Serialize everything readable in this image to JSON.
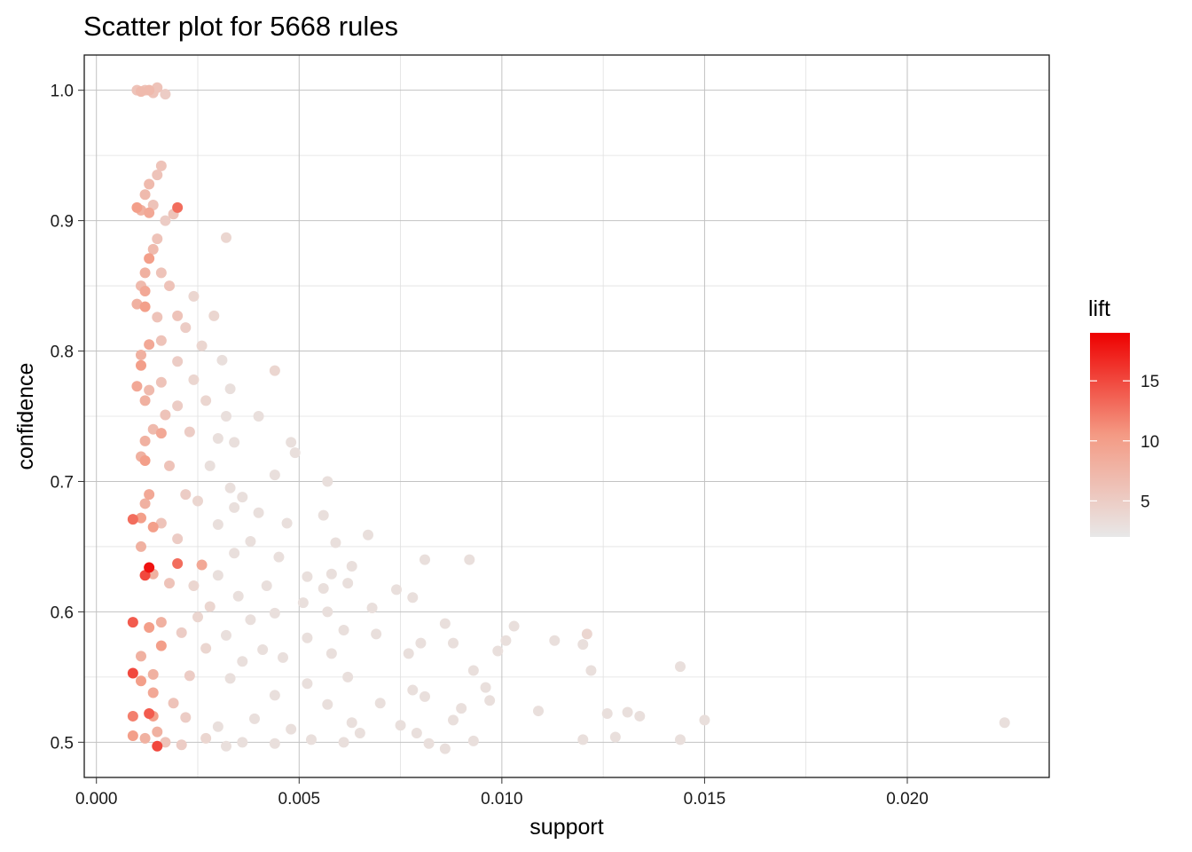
{
  "chart_data": {
    "type": "scatter",
    "title": "Scatter plot for 5668 rules",
    "xlabel": "support",
    "ylabel": "confidence",
    "xlim": [
      -0.0003,
      0.0235
    ],
    "ylim": [
      0.473,
      1.027
    ],
    "x_ticks": [
      0.0,
      0.005,
      0.01,
      0.015,
      0.02
    ],
    "x_tick_labels": [
      "0.000",
      "0.005",
      "0.010",
      "0.015",
      "0.020"
    ],
    "y_ticks": [
      0.5,
      0.6,
      0.7,
      0.8,
      0.9,
      1.0
    ],
    "y_tick_labels": [
      "0.5",
      "0.6",
      "0.7",
      "0.8",
      "0.9",
      "1.0"
    ],
    "grid": true,
    "legend": {
      "title": "lift",
      "placement": "right",
      "range": [
        2,
        19
      ],
      "ticks": [
        5,
        10,
        15
      ],
      "tick_labels": [
        "5",
        "10",
        "15"
      ],
      "color_low": "#e8e8e8",
      "color_high": "#ee0000"
    },
    "points": [
      [
        0.001,
        1.0,
        6
      ],
      [
        0.0012,
        1.0,
        6
      ],
      [
        0.0013,
        1.0,
        7
      ],
      [
        0.0015,
        1.002,
        6
      ],
      [
        0.0017,
        0.997,
        5
      ],
      [
        0.0011,
        0.999,
        7
      ],
      [
        0.0014,
        0.998,
        6
      ],
      [
        0.0016,
        0.942,
        6
      ],
      [
        0.0015,
        0.935,
        6
      ],
      [
        0.0013,
        0.928,
        7
      ],
      [
        0.0012,
        0.92,
        7
      ],
      [
        0.0014,
        0.912,
        6
      ],
      [
        0.001,
        0.91,
        10
      ],
      [
        0.0011,
        0.908,
        8
      ],
      [
        0.0013,
        0.906,
        9
      ],
      [
        0.002,
        0.91,
        13
      ],
      [
        0.0019,
        0.905,
        6
      ],
      [
        0.0017,
        0.9,
        5
      ],
      [
        0.0032,
        0.887,
        4
      ],
      [
        0.0015,
        0.886,
        6
      ],
      [
        0.0014,
        0.878,
        7
      ],
      [
        0.0013,
        0.871,
        10
      ],
      [
        0.0012,
        0.86,
        8
      ],
      [
        0.0016,
        0.86,
        6
      ],
      [
        0.0011,
        0.85,
        7
      ],
      [
        0.0012,
        0.846,
        9
      ],
      [
        0.0018,
        0.85,
        6
      ],
      [
        0.0024,
        0.842,
        4
      ],
      [
        0.001,
        0.836,
        8
      ],
      [
        0.0012,
        0.834,
        10
      ],
      [
        0.0015,
        0.826,
        6
      ],
      [
        0.002,
        0.827,
        6
      ],
      [
        0.0029,
        0.827,
        4
      ],
      [
        0.0022,
        0.818,
        5
      ],
      [
        0.0016,
        0.808,
        6
      ],
      [
        0.0013,
        0.805,
        9
      ],
      [
        0.0026,
        0.804,
        4
      ],
      [
        0.0011,
        0.797,
        8
      ],
      [
        0.002,
        0.792,
        5
      ],
      [
        0.0031,
        0.793,
        3
      ],
      [
        0.0011,
        0.789,
        10
      ],
      [
        0.0044,
        0.785,
        4
      ],
      [
        0.0024,
        0.778,
        4
      ],
      [
        0.0016,
        0.776,
        6
      ],
      [
        0.001,
        0.773,
        9
      ],
      [
        0.0013,
        0.77,
        7
      ],
      [
        0.0033,
        0.771,
        3
      ],
      [
        0.0012,
        0.762,
        8
      ],
      [
        0.0027,
        0.762,
        4
      ],
      [
        0.002,
        0.758,
        5
      ],
      [
        0.004,
        0.75,
        3
      ],
      [
        0.0017,
        0.751,
        6
      ],
      [
        0.0032,
        0.75,
        3
      ],
      [
        0.0014,
        0.74,
        7
      ],
      [
        0.0023,
        0.738,
        5
      ],
      [
        0.0016,
        0.737,
        9
      ],
      [
        0.0012,
        0.731,
        8
      ],
      [
        0.003,
        0.733,
        3
      ],
      [
        0.0034,
        0.73,
        3
      ],
      [
        0.0048,
        0.73,
        3
      ],
      [
        0.0049,
        0.722,
        3
      ],
      [
        0.0011,
        0.719,
        8
      ],
      [
        0.0012,
        0.716,
        10
      ],
      [
        0.0018,
        0.712,
        6
      ],
      [
        0.0028,
        0.712,
        3
      ],
      [
        0.0044,
        0.705,
        3
      ],
      [
        0.0057,
        0.7,
        3
      ],
      [
        0.0013,
        0.69,
        9
      ],
      [
        0.0022,
        0.69,
        5
      ],
      [
        0.0033,
        0.695,
        3
      ],
      [
        0.0036,
        0.688,
        3
      ],
      [
        0.0012,
        0.683,
        8
      ],
      [
        0.0025,
        0.685,
        4
      ],
      [
        0.0034,
        0.68,
        3
      ],
      [
        0.004,
        0.676,
        3
      ],
      [
        0.0056,
        0.674,
        3
      ],
      [
        0.0011,
        0.672,
        10
      ],
      [
        0.0009,
        0.671,
        13
      ],
      [
        0.0016,
        0.668,
        6
      ],
      [
        0.003,
        0.667,
        3
      ],
      [
        0.0047,
        0.668,
        3
      ],
      [
        0.0067,
        0.659,
        3
      ],
      [
        0.0014,
        0.665,
        10
      ],
      [
        0.002,
        0.656,
        5
      ],
      [
        0.0038,
        0.654,
        3
      ],
      [
        0.0059,
        0.653,
        3
      ],
      [
        0.0011,
        0.65,
        8
      ],
      [
        0.0034,
        0.645,
        3
      ],
      [
        0.0045,
        0.642,
        3
      ],
      [
        0.0063,
        0.635,
        3
      ],
      [
        0.0081,
        0.64,
        3
      ],
      [
        0.0092,
        0.64,
        3
      ],
      [
        0.0013,
        0.634,
        18
      ],
      [
        0.002,
        0.637,
        13
      ],
      [
        0.0026,
        0.636,
        9
      ],
      [
        0.0014,
        0.629,
        8
      ],
      [
        0.0012,
        0.628,
        15
      ],
      [
        0.003,
        0.628,
        3
      ],
      [
        0.0052,
        0.627,
        3
      ],
      [
        0.0058,
        0.629,
        3
      ],
      [
        0.0062,
        0.622,
        3
      ],
      [
        0.0018,
        0.622,
        6
      ],
      [
        0.0024,
        0.62,
        4
      ],
      [
        0.0042,
        0.62,
        3
      ],
      [
        0.0056,
        0.618,
        3
      ],
      [
        0.0074,
        0.617,
        3
      ],
      [
        0.0078,
        0.611,
        3
      ],
      [
        0.0035,
        0.612,
        3
      ],
      [
        0.0051,
        0.607,
        3
      ],
      [
        0.0028,
        0.604,
        4
      ],
      [
        0.0068,
        0.603,
        3
      ],
      [
        0.0057,
        0.6,
        3
      ],
      [
        0.0044,
        0.599,
        3
      ],
      [
        0.0009,
        0.592,
        14
      ],
      [
        0.0016,
        0.592,
        8
      ],
      [
        0.0025,
        0.596,
        4
      ],
      [
        0.0038,
        0.594,
        3
      ],
      [
        0.0086,
        0.591,
        3
      ],
      [
        0.0103,
        0.589,
        3
      ],
      [
        0.0061,
        0.586,
        3
      ],
      [
        0.0013,
        0.588,
        10
      ],
      [
        0.0021,
        0.584,
        5
      ],
      [
        0.0069,
        0.583,
        3
      ],
      [
        0.0121,
        0.583,
        4
      ],
      [
        0.0032,
        0.582,
        3
      ],
      [
        0.0052,
        0.58,
        3
      ],
      [
        0.0101,
        0.578,
        3
      ],
      [
        0.0113,
        0.578,
        3
      ],
      [
        0.008,
        0.576,
        3
      ],
      [
        0.0088,
        0.576,
        3
      ],
      [
        0.012,
        0.575,
        3
      ],
      [
        0.0016,
        0.574,
        10
      ],
      [
        0.0027,
        0.572,
        4
      ],
      [
        0.0041,
        0.571,
        3
      ],
      [
        0.0099,
        0.57,
        3
      ],
      [
        0.0058,
        0.568,
        3
      ],
      [
        0.0077,
        0.568,
        3
      ],
      [
        0.0011,
        0.566,
        8
      ],
      [
        0.0046,
        0.565,
        3
      ],
      [
        0.0036,
        0.562,
        3
      ],
      [
        0.0144,
        0.558,
        3
      ],
      [
        0.0093,
        0.555,
        3
      ],
      [
        0.0122,
        0.555,
        3
      ],
      [
        0.0009,
        0.553,
        15
      ],
      [
        0.0014,
        0.552,
        8
      ],
      [
        0.0023,
        0.551,
        5
      ],
      [
        0.0062,
        0.55,
        3
      ],
      [
        0.0033,
        0.549,
        3
      ],
      [
        0.0011,
        0.547,
        10
      ],
      [
        0.0052,
        0.545,
        3
      ],
      [
        0.0078,
        0.54,
        3
      ],
      [
        0.0096,
        0.542,
        3
      ],
      [
        0.0014,
        0.538,
        9
      ],
      [
        0.0044,
        0.536,
        3
      ],
      [
        0.0081,
        0.535,
        3
      ],
      [
        0.0097,
        0.532,
        3
      ],
      [
        0.0019,
        0.53,
        6
      ],
      [
        0.0057,
        0.529,
        3
      ],
      [
        0.007,
        0.53,
        3
      ],
      [
        0.009,
        0.526,
        3
      ],
      [
        0.0109,
        0.524,
        3
      ],
      [
        0.0131,
        0.523,
        3
      ],
      [
        0.0013,
        0.522,
        14
      ],
      [
        0.0014,
        0.52,
        10
      ],
      [
        0.0126,
        0.522,
        3
      ],
      [
        0.0134,
        0.52,
        3
      ],
      [
        0.015,
        0.517,
        3
      ],
      [
        0.0224,
        0.515,
        3
      ],
      [
        0.0009,
        0.52,
        12
      ],
      [
        0.0022,
        0.519,
        5
      ],
      [
        0.0039,
        0.518,
        3
      ],
      [
        0.0063,
        0.515,
        3
      ],
      [
        0.0088,
        0.517,
        3
      ],
      [
        0.0075,
        0.513,
        3
      ],
      [
        0.003,
        0.512,
        3
      ],
      [
        0.0048,
        0.51,
        3
      ],
      [
        0.0015,
        0.508,
        8
      ],
      [
        0.0065,
        0.507,
        3
      ],
      [
        0.0079,
        0.507,
        3
      ],
      [
        0.0009,
        0.505,
        10
      ],
      [
        0.0012,
        0.503,
        8
      ],
      [
        0.0027,
        0.503,
        4
      ],
      [
        0.0053,
        0.502,
        3
      ],
      [
        0.0093,
        0.501,
        3
      ],
      [
        0.012,
        0.502,
        3
      ],
      [
        0.0128,
        0.504,
        3
      ],
      [
        0.0144,
        0.502,
        3
      ],
      [
        0.0017,
        0.5,
        6
      ],
      [
        0.0036,
        0.5,
        3
      ],
      [
        0.0044,
        0.499,
        3
      ],
      [
        0.0061,
        0.5,
        3
      ],
      [
        0.0082,
        0.499,
        3
      ],
      [
        0.0015,
        0.497,
        15
      ],
      [
        0.0086,
        0.495,
        3
      ],
      [
        0.0021,
        0.498,
        5
      ],
      [
        0.0032,
        0.497,
        3
      ]
    ]
  }
}
